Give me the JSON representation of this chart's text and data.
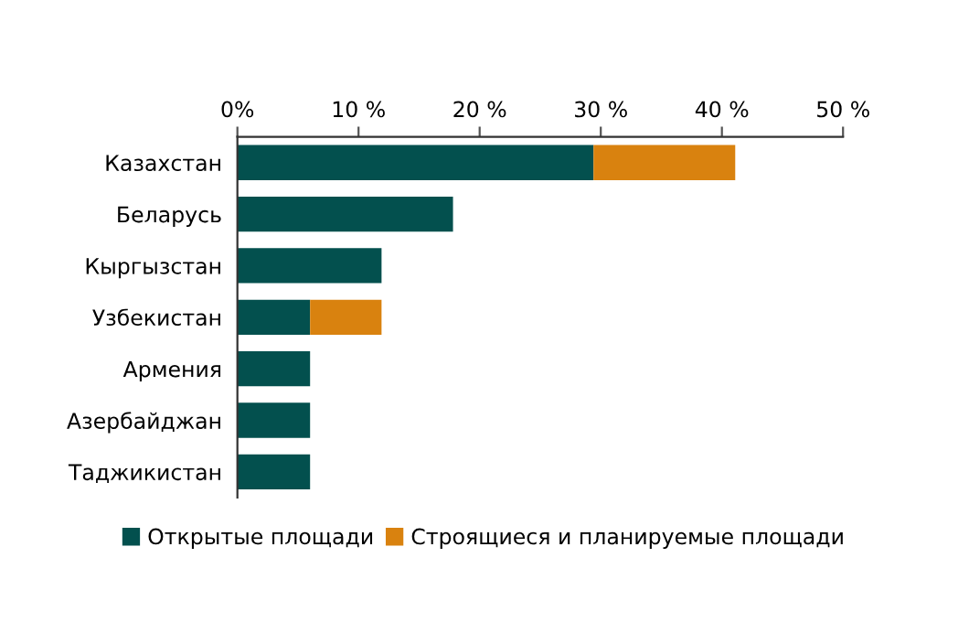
{
  "chart_data": {
    "type": "bar",
    "orientation": "horizontal",
    "stacked": true,
    "categories": [
      "Казахстан",
      "Беларусь",
      "Кыргызстан",
      "Узбекистан",
      "Армения",
      "Азербайджан",
      "Таджикистан"
    ],
    "series": [
      {
        "name": "Открытые площади",
        "color": "#03504e",
        "values": [
          29.4,
          17.8,
          11.9,
          6.0,
          6.0,
          6.0,
          6.0
        ]
      },
      {
        "name": "Строящиеся и планируемые площади",
        "color": "#d9820f",
        "values": [
          11.7,
          null,
          null,
          5.9,
          null,
          null,
          null
        ]
      }
    ],
    "xlim": [
      0,
      50
    ],
    "xticks": [
      {
        "value": 0,
        "label": "0%"
      },
      {
        "value": 10,
        "label": "10 %"
      },
      {
        "value": 20,
        "label": "20 %"
      },
      {
        "value": 30,
        "label": "30 %"
      },
      {
        "value": 40,
        "label": "40 %"
      },
      {
        "value": 50,
        "label": "50 %"
      }
    ],
    "grid": false,
    "legend": "bottom"
  }
}
